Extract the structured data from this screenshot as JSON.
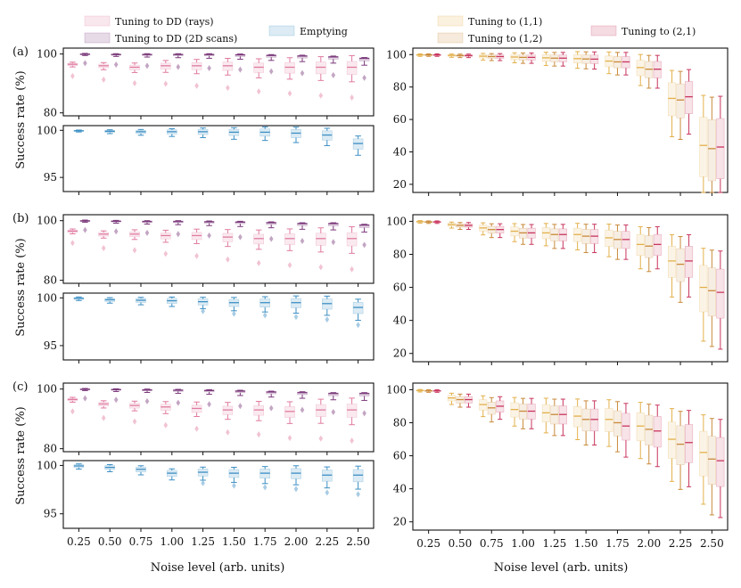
{
  "chart_data": {
    "type": "box",
    "xlabel": "Noise level (arb. units)",
    "ylabel": "Success rate (%)",
    "x_ticks": [
      "0.25",
      "0.50",
      "0.75",
      "1.00",
      "1.25",
      "1.50",
      "1.75",
      "2.00",
      "2.25",
      "2.50"
    ],
    "legend_left": [
      {
        "label": "Tuning to DD (rays)",
        "color": "#e07ba0"
      },
      {
        "label": "Tuning to DD (2D scans)",
        "color": "#7b3a7b"
      },
      {
        "label": "Emptying",
        "color": "#3d8fc4"
      }
    ],
    "legend_right": [
      {
        "label": "Tuning to (1,1)",
        "color": "#e3b04b"
      },
      {
        "label": "Tuning to (1,2)",
        "color": "#c98a3a"
      },
      {
        "label": "Tuning to (2,1)",
        "color": "#c8365d"
      }
    ],
    "rows": [
      {
        "tag": "(a)",
        "left_top": {
          "ylim": [
            79,
            102
          ],
          "yticks": [
            80,
            100
          ],
          "series": [
            {
              "name": "Tuning to DD (rays)",
              "median": [
                96.5,
                96.0,
                95.5,
                96.0,
                96.0,
                96.0,
                95.5,
                95.5,
                95.5,
                95.5
              ]
            },
            {
              "name": "Tuning to DD (2D scans)",
              "median": [
                99.9,
                99.8,
                99.8,
                99.8,
                99.8,
                99.7,
                99.5,
                99.3,
                99.0,
                98.5
              ]
            }
          ]
        },
        "left_bottom": {
          "ylim": [
            93.5,
            100.5
          ],
          "yticks": [
            95,
            100
          ],
          "series": [
            {
              "name": "Emptying",
              "median": [
                99.95,
                99.9,
                99.85,
                99.85,
                99.85,
                99.8,
                99.8,
                99.7,
                99.5,
                98.6
              ]
            }
          ]
        },
        "right": {
          "ylim": [
            15,
            104
          ],
          "yticks": [
            20,
            40,
            60,
            80,
            100
          ],
          "series": [
            {
              "name": "Tuning to (1,1)",
              "median": [
                99.8,
                99.5,
                99,
                98.5,
                98,
                97.5,
                96,
                92,
                73,
                44
              ]
            },
            {
              "name": "Tuning to (1,2)",
              "median": [
                99.8,
                99.4,
                98.8,
                98.3,
                97.8,
                97.3,
                95.5,
                91,
                72,
                42
              ]
            },
            {
              "name": "Tuning to (2,1)",
              "median": [
                99.8,
                99.4,
                98.8,
                98.3,
                97.8,
                97.2,
                95.5,
                91,
                74,
                43
              ]
            }
          ]
        }
      },
      {
        "tag": "(b)",
        "left_top": {
          "ylim": [
            79,
            102
          ],
          "yticks": [
            80,
            100
          ],
          "series": [
            {
              "name": "Tuning to DD (rays)",
              "median": [
                96.5,
                95.5,
                95.5,
                95.0,
                95.0,
                94.5,
                94.0,
                94.0,
                94.0,
                94.0
              ]
            },
            {
              "name": "Tuning to DD (2D scans)",
              "median": [
                99.9,
                99.8,
                99.7,
                99.7,
                99.6,
                99.5,
                99.3,
                99.0,
                99.0,
                98.5
              ]
            }
          ]
        },
        "left_bottom": {
          "ylim": [
            93.5,
            100.5
          ],
          "yticks": [
            95,
            100
          ],
          "series": [
            {
              "name": "Emptying",
              "median": [
                99.95,
                99.8,
                99.75,
                99.7,
                99.6,
                99.5,
                99.5,
                99.5,
                99.4,
                99.0
              ]
            }
          ]
        },
        "right": {
          "ylim": [
            15,
            104
          ],
          "yticks": [
            20,
            40,
            60,
            80,
            100
          ],
          "series": [
            {
              "name": "Tuning to (1,1)",
              "median": [
                99.8,
                98,
                96,
                94,
                93,
                92,
                90,
                86,
                76,
                60
              ]
            },
            {
              "name": "Tuning to (1,2)",
              "median": [
                99.6,
                97.5,
                95,
                93,
                92,
                91,
                89,
                85,
                74,
                58
              ]
            },
            {
              "name": "Tuning to (2,1)",
              "median": [
                99.6,
                97.5,
                95,
                93,
                92,
                91,
                89,
                86,
                76,
                57
              ]
            }
          ]
        }
      },
      {
        "tag": "(c)",
        "left_top": {
          "ylim": [
            79,
            102
          ],
          "yticks": [
            80,
            100
          ],
          "series": [
            {
              "name": "Tuning to DD (rays)",
              "median": [
                96.5,
                95.0,
                94.5,
                94.0,
                93.5,
                93.0,
                93.0,
                92.5,
                93.0,
                93.0
              ]
            },
            {
              "name": "Tuning to DD (2D scans)",
              "median": [
                99.9,
                99.8,
                99.7,
                99.6,
                99.5,
                99.3,
                99.0,
                98.8,
                98.5,
                98.5
              ]
            }
          ]
        },
        "left_bottom": {
          "ylim": [
            93.5,
            100.5
          ],
          "yticks": [
            95,
            100
          ],
          "series": [
            {
              "name": "Emptying",
              "median": [
                99.95,
                99.8,
                99.6,
                99.2,
                99.3,
                99.2,
                99.2,
                99.2,
                99.0,
                99.0
              ]
            }
          ]
        },
        "right": {
          "ylim": [
            15,
            104
          ],
          "yticks": [
            20,
            40,
            60,
            80,
            100
          ],
          "series": [
            {
              "name": "Tuning to (1,1)",
              "median": [
                99.5,
                95,
                91,
                88,
                86,
                84,
                82,
                78,
                70,
                62
              ]
            },
            {
              "name": "Tuning to (1,2)",
              "median": [
                99.3,
                94,
                89,
                87,
                85,
                82,
                80,
                76,
                67,
                58
              ]
            },
            {
              "name": "Tuning to (2,1)",
              "median": [
                99.3,
                94,
                90,
                87,
                85,
                82,
                78,
                75,
                68,
                57
              ]
            }
          ]
        }
      }
    ]
  }
}
